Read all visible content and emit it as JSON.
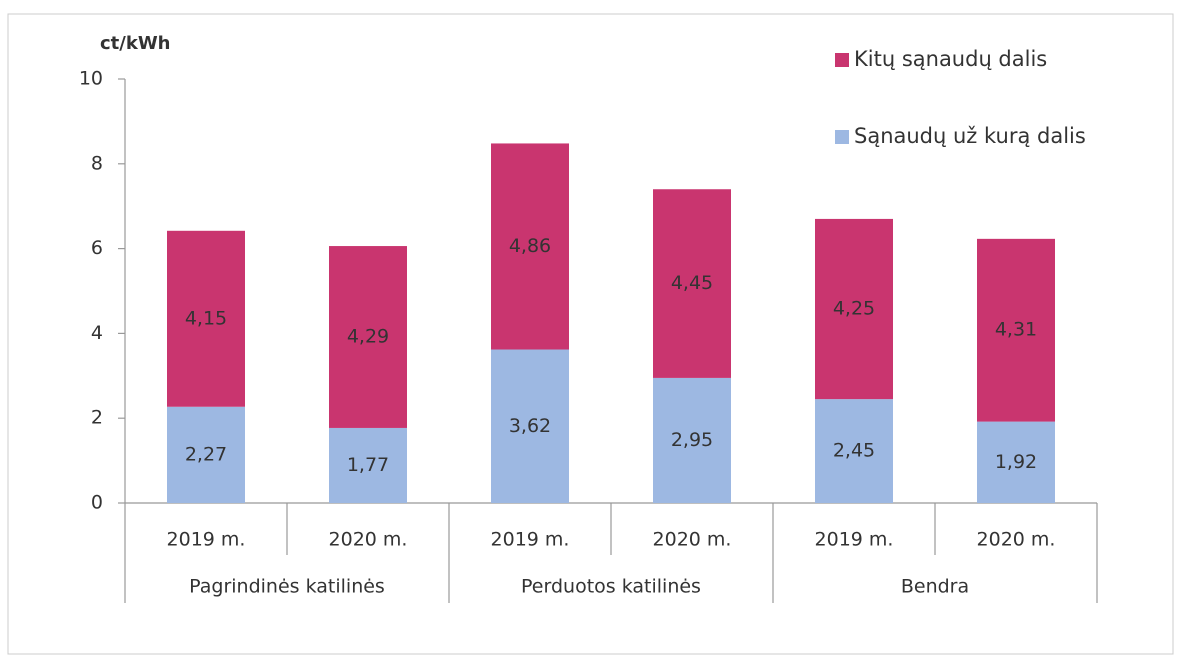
{
  "chart_data": {
    "type": "stacked_bar",
    "y_label": "ct/kWh",
    "categories": [
      "2019 m.",
      "2020 m.",
      "2019 m.",
      "2020 m.",
      "2019 m.",
      "2020 m."
    ],
    "groups": [
      "Pagrindinės katilinės",
      "Perduotos katilinės",
      "Bendra"
    ],
    "series": [
      {
        "name": "Sąnaudų už kurą dalis",
        "color": "#9db8e2",
        "values": [
          2.27,
          1.77,
          3.62,
          2.95,
          2.45,
          1.92
        ],
        "value_labels": [
          "2,27",
          "1,77",
          "3,62",
          "2,95",
          "2,45",
          "1,92"
        ]
      },
      {
        "name": "Kitų sąnaudų dalis",
        "color": "#c9356f",
        "values": [
          4.15,
          4.29,
          4.86,
          4.45,
          4.25,
          4.31
        ],
        "value_labels": [
          "4,15",
          "4,29",
          "4,86",
          "4,45",
          "4,25",
          "4,31"
        ]
      }
    ],
    "ylim": [
      0,
      10
    ],
    "yticks": [
      0,
      2,
      4,
      6,
      8,
      10
    ],
    "grid": false,
    "legend": "top-right"
  }
}
